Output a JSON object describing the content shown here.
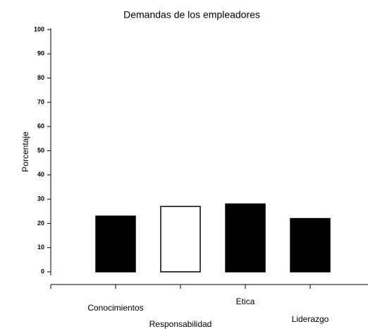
{
  "chart_data": {
    "type": "bar",
    "title": "Demandas de los empleadores",
    "y_label": "Porcentaje",
    "categories": [
      "Conocimientos",
      "Responsabilidad",
      "Etica",
      "Liderazgo"
    ],
    "values": [
      23,
      27,
      28,
      22
    ],
    "colors": [
      "#000000",
      "#ffffff",
      "#000000",
      "#000000"
    ],
    "ylim": [
      0,
      100
    ],
    "yticks": [
      0,
      10,
      20,
      30,
      40,
      50,
      60,
      70,
      80,
      90,
      100
    ],
    "grid": false
  }
}
